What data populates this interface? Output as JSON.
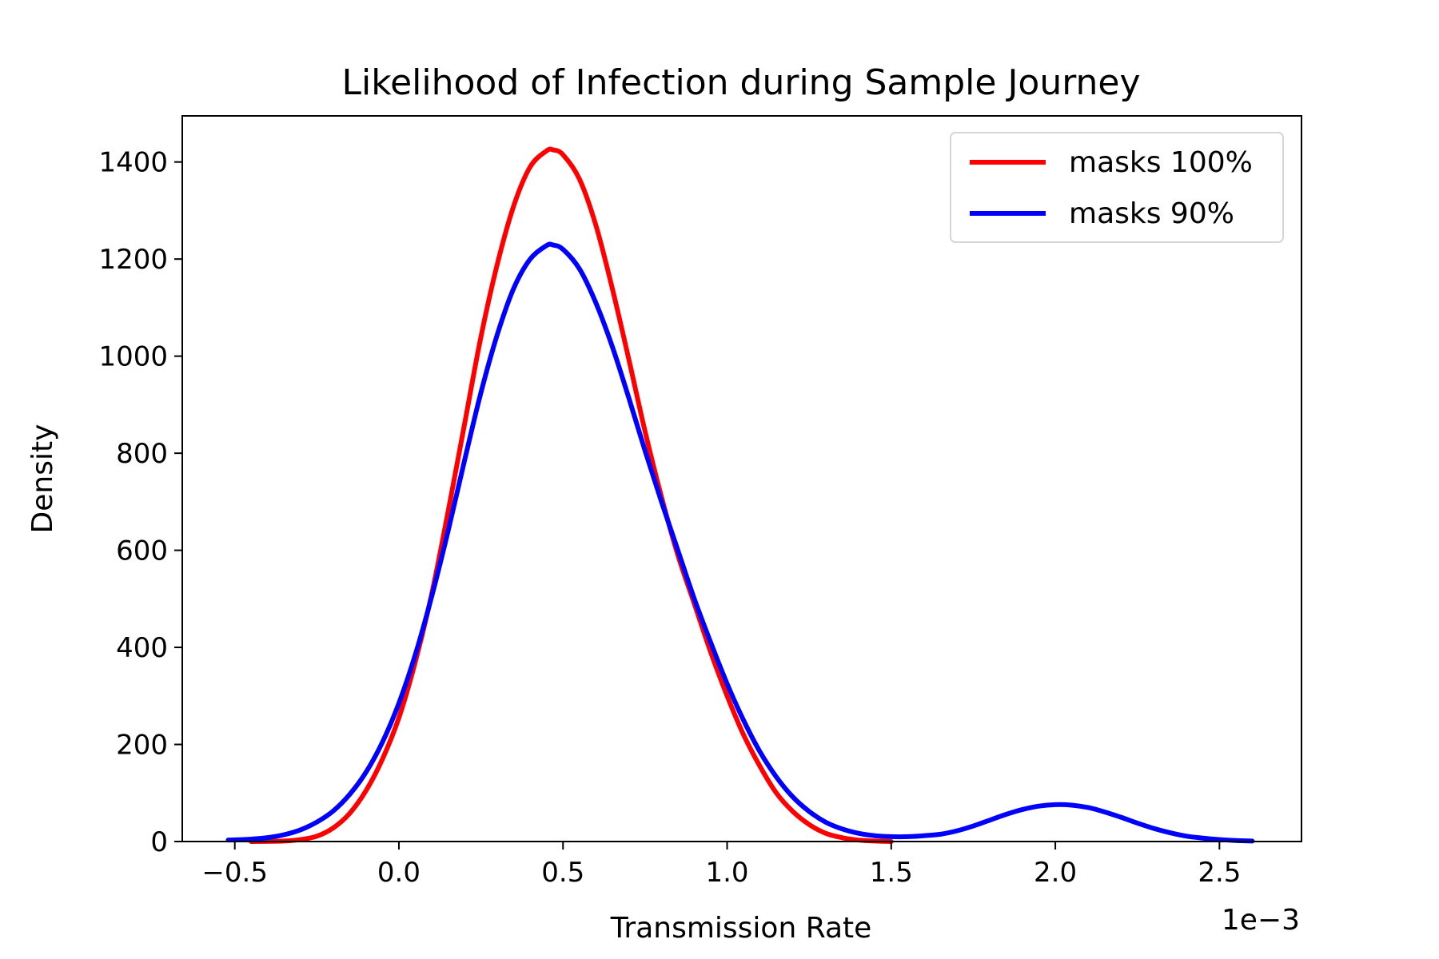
{
  "chart_data": {
    "type": "line",
    "title": "Likelihood of Infection during Sample Journey",
    "xlabel": "Transmission Rate",
    "ylabel": "Density",
    "x_offset_label": "1e−3",
    "xlim": [
      -0.66,
      2.75
    ],
    "ylim": [
      0,
      1495
    ],
    "x_ticks": [
      -0.5,
      0.0,
      0.5,
      1.0,
      1.5,
      2.0,
      2.5
    ],
    "x_tick_labels": [
      "−0.5",
      "0.0",
      "0.5",
      "1.0",
      "1.5",
      "2.0",
      "2.5"
    ],
    "y_ticks": [
      0,
      200,
      400,
      600,
      800,
      1000,
      1200,
      1400
    ],
    "y_tick_labels": [
      "0",
      "200",
      "400",
      "600",
      "800",
      "1000",
      "1200",
      "1400"
    ],
    "grid": false,
    "legend_position": "top-right",
    "series": [
      {
        "name": "masks 100%",
        "color": "#ff0000",
        "points": [
          [
            -0.45,
            0
          ],
          [
            -0.35,
            1
          ],
          [
            -0.3,
            4
          ],
          [
            -0.25,
            11
          ],
          [
            -0.2,
            28
          ],
          [
            -0.15,
            58
          ],
          [
            -0.1,
            105
          ],
          [
            -0.05,
            170
          ],
          [
            0.0,
            255
          ],
          [
            0.05,
            370
          ],
          [
            0.1,
            510
          ],
          [
            0.15,
            680
          ],
          [
            0.2,
            860
          ],
          [
            0.25,
            1040
          ],
          [
            0.3,
            1190
          ],
          [
            0.35,
            1310
          ],
          [
            0.4,
            1390
          ],
          [
            0.45,
            1423
          ],
          [
            0.47,
            1425
          ],
          [
            0.5,
            1415
          ],
          [
            0.55,
            1365
          ],
          [
            0.6,
            1270
          ],
          [
            0.65,
            1140
          ],
          [
            0.7,
            995
          ],
          [
            0.75,
            845
          ],
          [
            0.8,
            710
          ],
          [
            0.85,
            590
          ],
          [
            0.9,
            490
          ],
          [
            0.95,
            390
          ],
          [
            1.0,
            300
          ],
          [
            1.05,
            220
          ],
          [
            1.1,
            155
          ],
          [
            1.15,
            100
          ],
          [
            1.2,
            62
          ],
          [
            1.25,
            35
          ],
          [
            1.3,
            17
          ],
          [
            1.35,
            8
          ],
          [
            1.4,
            3
          ],
          [
            1.45,
            1
          ],
          [
            1.5,
            0
          ]
        ]
      },
      {
        "name": "masks 90%",
        "color": "#0000ff",
        "points": [
          [
            -0.52,
            3
          ],
          [
            -0.45,
            5
          ],
          [
            -0.4,
            8
          ],
          [
            -0.35,
            14
          ],
          [
            -0.3,
            24
          ],
          [
            -0.25,
            40
          ],
          [
            -0.2,
            63
          ],
          [
            -0.15,
            97
          ],
          [
            -0.1,
            143
          ],
          [
            -0.05,
            205
          ],
          [
            0.0,
            285
          ],
          [
            0.05,
            385
          ],
          [
            0.1,
            505
          ],
          [
            0.15,
            640
          ],
          [
            0.2,
            785
          ],
          [
            0.25,
            925
          ],
          [
            0.3,
            1045
          ],
          [
            0.35,
            1140
          ],
          [
            0.4,
            1200
          ],
          [
            0.45,
            1228
          ],
          [
            0.47,
            1229
          ],
          [
            0.5,
            1220
          ],
          [
            0.55,
            1180
          ],
          [
            0.6,
            1110
          ],
          [
            0.65,
            1020
          ],
          [
            0.7,
            915
          ],
          [
            0.75,
            805
          ],
          [
            0.8,
            700
          ],
          [
            0.85,
            600
          ],
          [
            0.9,
            500
          ],
          [
            0.95,
            410
          ],
          [
            1.0,
            325
          ],
          [
            1.05,
            250
          ],
          [
            1.1,
            185
          ],
          [
            1.15,
            133
          ],
          [
            1.2,
            92
          ],
          [
            1.25,
            62
          ],
          [
            1.3,
            40
          ],
          [
            1.35,
            26
          ],
          [
            1.4,
            17
          ],
          [
            1.45,
            12
          ],
          [
            1.5,
            10
          ],
          [
            1.55,
            10
          ],
          [
            1.6,
            12
          ],
          [
            1.65,
            15
          ],
          [
            1.7,
            22
          ],
          [
            1.75,
            32
          ],
          [
            1.8,
            44
          ],
          [
            1.85,
            56
          ],
          [
            1.9,
            66
          ],
          [
            1.95,
            73
          ],
          [
            2.0,
            76
          ],
          [
            2.05,
            75
          ],
          [
            2.1,
            70
          ],
          [
            2.15,
            61
          ],
          [
            2.2,
            50
          ],
          [
            2.25,
            38
          ],
          [
            2.3,
            27
          ],
          [
            2.35,
            18
          ],
          [
            2.4,
            11
          ],
          [
            2.45,
            7
          ],
          [
            2.5,
            4
          ],
          [
            2.55,
            2
          ],
          [
            2.6,
            1
          ]
        ]
      }
    ]
  }
}
